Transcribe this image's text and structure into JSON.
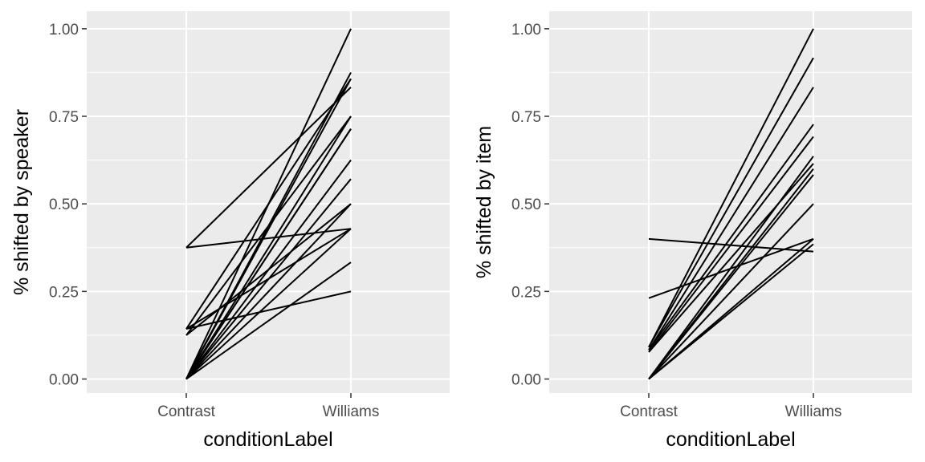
{
  "chart_data": [
    {
      "type": "line",
      "categories": [
        "Contrast",
        "Williams"
      ],
      "xlabel": "conditionLabel",
      "ylabel": "% shifted by speaker",
      "ylim": [
        -0.04,
        1.05
      ],
      "yticks": [
        0.0,
        0.25,
        0.5,
        0.75,
        1.0
      ],
      "ytick_labels": [
        "0.00",
        "0.25",
        "0.50",
        "0.75",
        "1.00"
      ],
      "grid": true,
      "series": [
        {
          "values": [
            0.375,
            0.833
          ]
        },
        {
          "values": [
            0.375,
            0.429
          ]
        },
        {
          "values": [
            0.143,
            0.25
          ]
        },
        {
          "values": [
            0.143,
            0.429
          ]
        },
        {
          "values": [
            0.125,
            0.5
          ]
        },
        {
          "values": [
            0.125,
            0.75
          ]
        },
        {
          "values": [
            0.143,
            0.857
          ]
        },
        {
          "values": [
            0.0,
            1.0
          ]
        },
        {
          "values": [
            0.0,
            0.875
          ]
        },
        {
          "values": [
            0.0,
            0.857
          ]
        },
        {
          "values": [
            0.0,
            0.75
          ]
        },
        {
          "values": [
            0.0,
            0.714
          ]
        },
        {
          "values": [
            0.0,
            0.714
          ]
        },
        {
          "values": [
            0.0,
            0.625
          ]
        },
        {
          "values": [
            0.0,
            0.571
          ]
        },
        {
          "values": [
            0.0,
            0.5
          ]
        },
        {
          "values": [
            0.0,
            0.429
          ]
        },
        {
          "values": [
            0.0,
            0.333
          ]
        }
      ]
    },
    {
      "type": "line",
      "categories": [
        "Contrast",
        "Williams"
      ],
      "xlabel": "conditionLabel",
      "ylabel": "% shifted by item",
      "ylim": [
        -0.04,
        1.05
      ],
      "yticks": [
        0.0,
        0.25,
        0.5,
        0.75,
        1.0
      ],
      "ytick_labels": [
        "0.00",
        "0.25",
        "0.50",
        "0.75",
        "1.00"
      ],
      "grid": true,
      "series": [
        {
          "values": [
            0.4,
            0.364
          ]
        },
        {
          "values": [
            0.231,
            0.4
          ]
        },
        {
          "values": [
            0.091,
            1.0
          ]
        },
        {
          "values": [
            0.091,
            0.917
          ]
        },
        {
          "values": [
            0.083,
            0.833
          ]
        },
        {
          "values": [
            0.083,
            0.727
          ]
        },
        {
          "values": [
            0.077,
            0.692
          ]
        },
        {
          "values": [
            0.077,
            0.615
          ]
        },
        {
          "values": [
            0.0,
            0.636
          ]
        },
        {
          "values": [
            0.0,
            0.6
          ]
        },
        {
          "values": [
            0.0,
            0.583
          ]
        },
        {
          "values": [
            0.0,
            0.5
          ]
        },
        {
          "values": [
            0.0,
            0.4
          ]
        },
        {
          "values": [
            0.0,
            0.385
          ]
        }
      ]
    }
  ]
}
